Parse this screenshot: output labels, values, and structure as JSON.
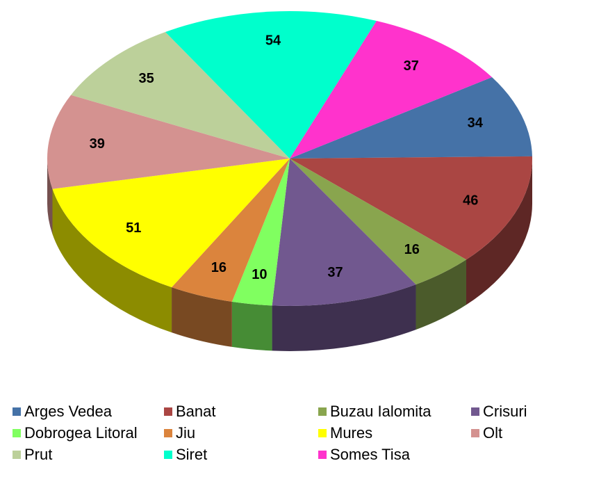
{
  "chart_data": {
    "type": "pie",
    "categories": [
      "Arges Vedea",
      "Banat",
      "Buzau Ialomita",
      "Crisuri",
      "Dobrogea Litoral",
      "Jiu",
      "Mures",
      "Olt",
      "Prut",
      "Siret",
      "Somes Tisa"
    ],
    "values": [
      34,
      46,
      16,
      37,
      10,
      16,
      51,
      39,
      35,
      54,
      37
    ],
    "colors": [
      "#4572a7",
      "#aa4643",
      "#89a54e",
      "#71588f",
      "#80ff60",
      "#db843d",
      "#ffff00",
      "#d49290",
      "#bcd09a",
      "#00ffcc",
      "#ff33cc"
    ],
    "legend": "bottom"
  }
}
